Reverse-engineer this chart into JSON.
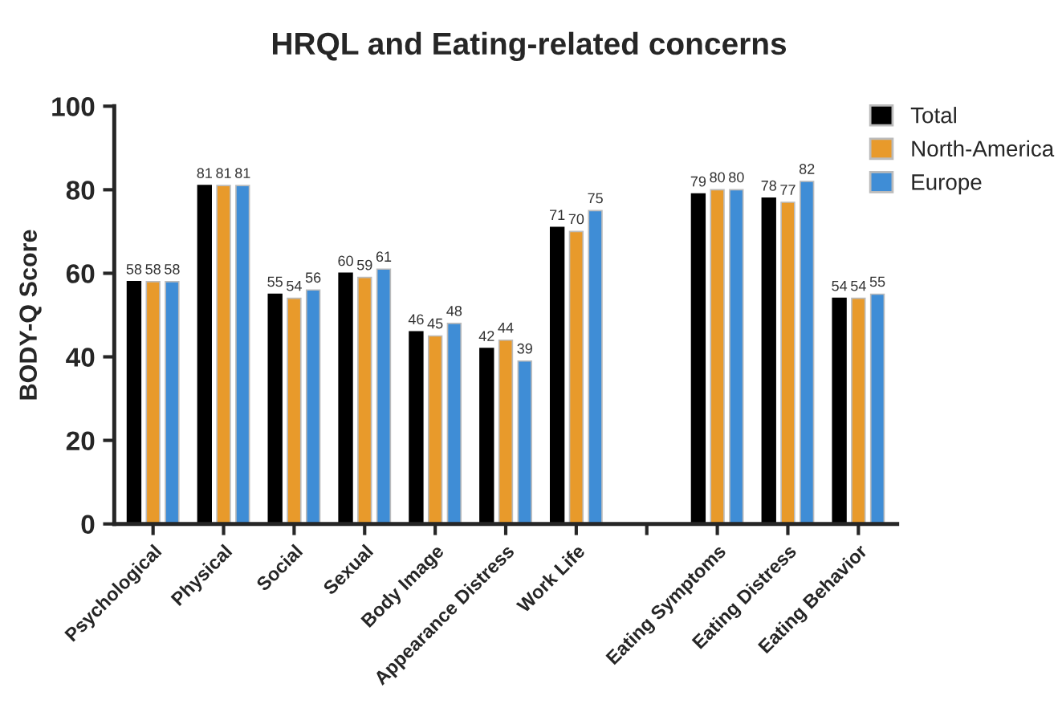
{
  "chart_data": {
    "type": "bar",
    "title": "HRQL and Eating-related concerns",
    "ylabel": "BODY-Q Score",
    "categories": [
      "Psychological",
      "Physical",
      "Social",
      "Sexual",
      "Body Image",
      "Appearance Distress",
      "Work Life",
      null,
      "Eating Symptoms",
      "Eating Distress",
      "Eating Behavior"
    ],
    "series": [
      {
        "name": "Total",
        "color": "#000000",
        "values": [
          58,
          81,
          55,
          60,
          46,
          42,
          71,
          null,
          79,
          78,
          54
        ]
      },
      {
        "name": "North-America",
        "color": "#e89a2b",
        "values": [
          58,
          81,
          54,
          59,
          45,
          44,
          70,
          null,
          80,
          77,
          54
        ]
      },
      {
        "name": "Europe",
        "color": "#3f8dd6",
        "values": [
          58,
          81,
          56,
          61,
          48,
          39,
          75,
          null,
          80,
          82,
          55
        ]
      }
    ],
    "ylim": [
      0,
      100
    ],
    "yticks": [
      0,
      20,
      40,
      60,
      80,
      100
    ],
    "data_labels": true,
    "legend": "top right",
    "grid": false
  }
}
